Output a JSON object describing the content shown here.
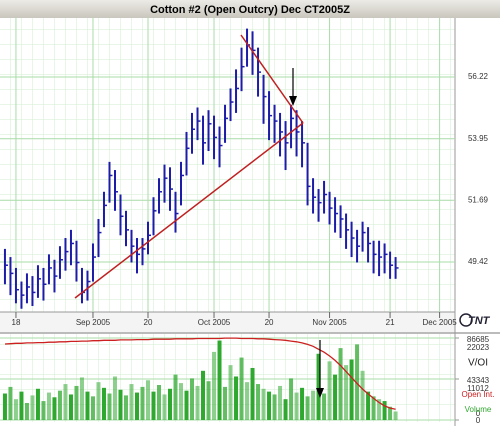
{
  "chart_data": [
    {
      "type": "ohlc",
      "title": "Cotton #2 (Open Outcry) Dec CT2005Z",
      "logo": "TNT",
      "color": "#1c1ca8",
      "grid": true,
      "high": [
        49.9,
        49.6,
        49.2,
        48.7,
        49.0,
        48.9,
        49.3,
        49.2,
        49.7,
        49.5,
        50.0,
        50.3,
        50.6,
        50.2,
        49.2,
        49.1,
        50.1,
        51.0,
        52.0,
        53.1,
        52.8,
        51.9,
        51.3,
        50.6,
        50.3,
        50.3,
        50.9,
        51.8,
        52.5,
        53.0,
        52.9,
        52.0,
        53.1,
        54.2,
        54.9,
        55.1,
        54.8,
        55.0,
        54.8,
        54.4,
        55.2,
        55.8,
        56.5,
        57.3,
        58.0,
        57.9,
        57.3,
        56.3,
        55.7,
        55.2,
        54.9,
        54.6,
        55.2,
        55.0,
        54.6,
        53.8,
        52.5,
        52.1,
        52.4,
        52.0,
        51.8,
        51.5,
        51.2,
        50.9,
        50.6,
        50.9,
        50.7,
        50.2,
        50.2,
        50.1,
        49.8,
        49.6
      ],
      "low": [
        48.6,
        48.2,
        47.9,
        47.7,
        47.9,
        47.8,
        48.1,
        48.0,
        48.6,
        48.3,
        48.8,
        49.1,
        49.3,
        48.7,
        47.9,
        48.0,
        48.7,
        49.6,
        50.7,
        51.6,
        51.3,
        50.4,
        50.0,
        49.4,
        49.0,
        49.3,
        49.7,
        50.4,
        51.2,
        51.6,
        51.3,
        50.5,
        51.5,
        52.6,
        53.4,
        53.9,
        53.0,
        53.5,
        53.2,
        52.9,
        53.8,
        54.6,
        54.9,
        55.7,
        56.6,
        56.3,
        55.5,
        54.5,
        53.9,
        53.8,
        53.3,
        52.8,
        53.6,
        53.3,
        52.9,
        51.5,
        51.2,
        50.9,
        51.2,
        50.8,
        50.5,
        50.3,
        49.9,
        49.6,
        49.4,
        49.8,
        49.4,
        49.0,
        48.9,
        49.0,
        48.8,
        48.8
      ],
      "close": [
        49.3,
        49.0,
        48.4,
        48.2,
        48.5,
        48.3,
        48.8,
        48.6,
        49.2,
        48.9,
        49.5,
        49.8,
        50.1,
        49.4,
        48.3,
        48.7,
        49.6,
        50.5,
        51.5,
        52.6,
        52.0,
        51.1,
        50.6,
        50.0,
        49.7,
        49.9,
        50.4,
        51.3,
        52.0,
        52.5,
        52.1,
        51.2,
        52.6,
        53.6,
        54.3,
        54.6,
        53.8,
        54.5,
        54.0,
        53.7,
        54.7,
        55.3,
        55.8,
        56.6,
        57.4,
        57.2,
        56.4,
        55.5,
        54.8,
        54.6,
        54.2,
        53.8,
        54.7,
        54.2,
        53.8,
        52.2,
        51.8,
        51.6,
        51.9,
        51.4,
        51.2,
        51.0,
        50.6,
        50.3,
        50.0,
        50.5,
        50.1,
        49.7,
        49.6,
        49.7,
        49.3,
        49.2
      ],
      "ylim": [
        47.58,
        58.39
      ],
      "yticks": [
        49.42,
        51.69,
        53.95,
        56.22
      ],
      "xlim": [
        -0.9,
        81.8
      ],
      "xticks": [
        {
          "value": 2,
          "label": "18"
        },
        {
          "value": 16,
          "label": "Sep 2005"
        },
        {
          "value": 26,
          "label": "20"
        },
        {
          "value": 38,
          "label": "Oct 2005"
        },
        {
          "value": 48,
          "label": "20"
        },
        {
          "value": 59,
          "label": "Nov 2005"
        },
        {
          "value": 70,
          "label": "21"
        },
        {
          "value": 79,
          "label": "Dec 2005"
        }
      ]
    },
    {
      "type": "bar",
      "label": "V/OI",
      "xlim": [
        -0.9,
        81.8
      ],
      "ylim": [
        0,
        86685
      ],
      "yticks": [
        0,
        43343,
        86685
      ],
      "y2lim": [
        0,
        22023
      ],
      "y2ticks": [
        0,
        11012,
        22023
      ],
      "series": [
        {
          "name": "Volume",
          "color": "#2fa82f",
          "values": [
            28000,
            35000,
            22000,
            30000,
            18000,
            26000,
            33000,
            20000,
            29000,
            24000,
            31000,
            38000,
            27000,
            36000,
            45000,
            30000,
            25000,
            40000,
            34000,
            28000,
            46000,
            32000,
            26000,
            38000,
            29000,
            35000,
            42000,
            30000,
            37000,
            27000,
            33000,
            48000,
            39000,
            31000,
            44000,
            36000,
            52000,
            41000,
            72000,
            84000,
            35000,
            58000,
            46000,
            66000,
            40000,
            55000,
            38000,
            33000,
            30000,
            27000,
            36000,
            22000,
            44000,
            29000,
            34000,
            25000,
            31000,
            70000,
            28000,
            62000,
            48000,
            76000,
            58000,
            64000,
            80000,
            52000,
            30000,
            25000,
            22000,
            20000,
            14000,
            9000
          ]
        },
        {
          "name": "Open Int.",
          "color": "#cc2020",
          "type": "line",
          "axis": "y2",
          "values": [
            20400,
            20500,
            20600,
            20600,
            20700,
            20700,
            20800,
            20800,
            20900,
            20900,
            21000,
            21000,
            21100,
            21100,
            21200,
            21200,
            21300,
            21300,
            21400,
            21400,
            21400,
            21500,
            21500,
            21500,
            21600,
            21600,
            21600,
            21700,
            21700,
            21700,
            21700,
            21800,
            21800,
            21800,
            21800,
            21900,
            21900,
            21900,
            21900,
            21900,
            22000,
            22000,
            22000,
            21900,
            21900,
            21900,
            21800,
            21800,
            21700,
            21600,
            21500,
            21400,
            21200,
            21000,
            20700,
            20300,
            19800,
            19000,
            18200,
            17200,
            16000,
            14600,
            13000,
            11400,
            9800,
            8300,
            7000,
            5800,
            4700,
            3800,
            3200,
            2900
          ]
        }
      ]
    }
  ]
}
